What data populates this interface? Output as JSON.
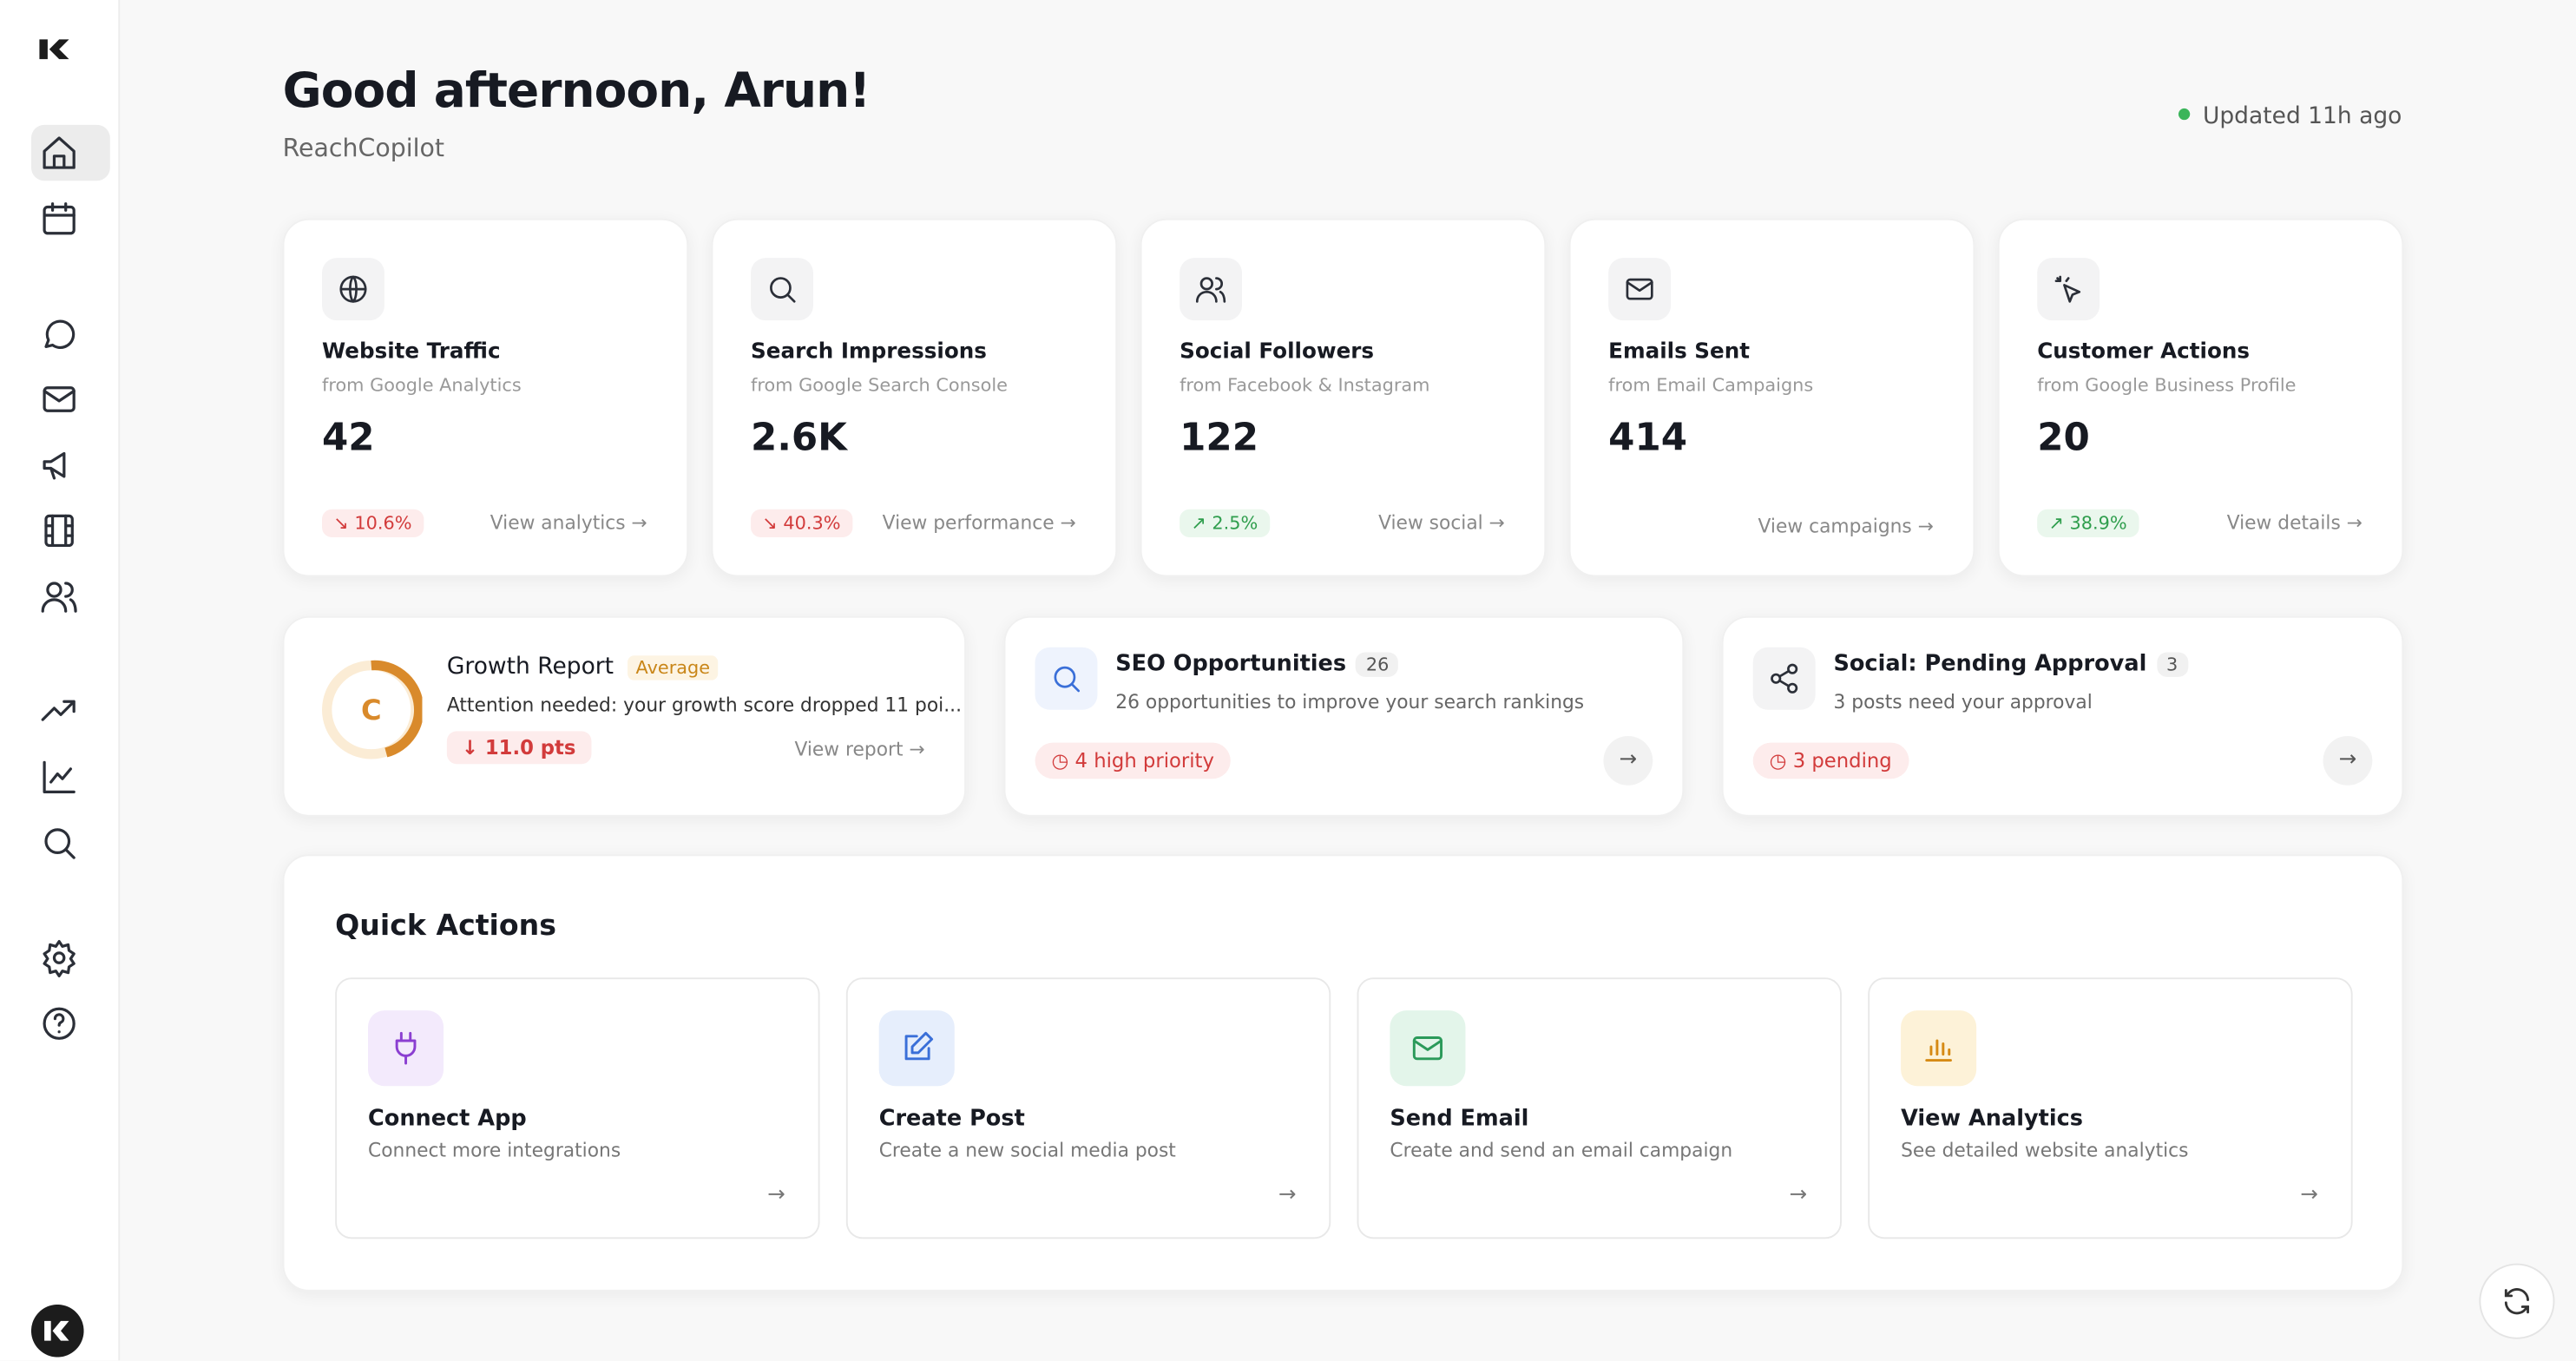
{
  "header": {
    "title": "Good afternoon, Arun!",
    "subtitle": "ReachCopilot",
    "status": "Updated 11h ago"
  },
  "metrics": [
    {
      "title": "Website Traffic",
      "source": "from Google Analytics",
      "value": "42",
      "change": "10.6%",
      "trend": "down",
      "link": "View analytics"
    },
    {
      "title": "Search Impressions",
      "source": "from Google Search Console",
      "value": "2.6K",
      "change": "40.3%",
      "trend": "down",
      "link": "View performance"
    },
    {
      "title": "Social Followers",
      "source": "from Facebook & Instagram",
      "value": "122",
      "change": "2.5%",
      "trend": "up",
      "link": "View social"
    },
    {
      "title": "Emails Sent",
      "source": "from Email Campaigns",
      "value": "414",
      "link": "View campaigns"
    },
    {
      "title": "Customer Actions",
      "source": "from Google Business Profile",
      "value": "20",
      "change": "38.9%",
      "trend": "up",
      "link": "View details"
    }
  ],
  "growth": {
    "grade": "C",
    "title": "Growth Report",
    "badge": "Average",
    "message": "Attention needed: your growth score dropped 11 poi...",
    "change": "11.0 pts",
    "link": "View report"
  },
  "seo": {
    "title": "SEO Opportunities",
    "count": "26",
    "description": "26 opportunities to improve your search rankings",
    "badge": "4 high priority"
  },
  "social": {
    "title": "Social: Pending Approval",
    "count": "3",
    "description": "3 posts need your approval",
    "badge": "3 pending"
  },
  "quick_actions": {
    "title": "Quick Actions",
    "items": [
      {
        "title": "Connect App",
        "description": "Connect more integrations"
      },
      {
        "title": "Create Post",
        "description": "Create a new social media post"
      },
      {
        "title": "Send Email",
        "description": "Create and send an email campaign"
      },
      {
        "title": "View Analytics",
        "description": "See detailed website analytics"
      }
    ]
  }
}
